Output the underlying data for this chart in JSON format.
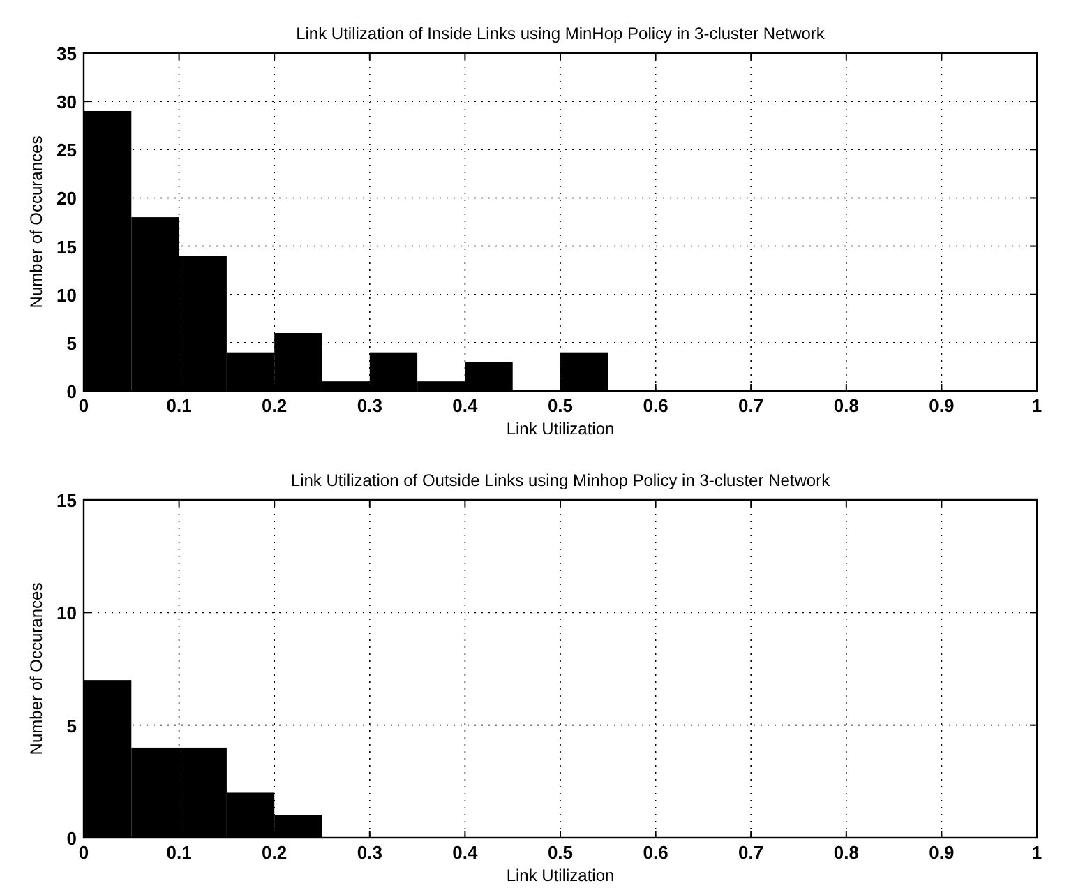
{
  "chart_data": [
    {
      "type": "histogram",
      "title": "Link Utilization of Inside Links using MinHop Policy in 3-cluster Network",
      "xlabel": "Link Utilization",
      "ylabel": "Number of Occurances",
      "color": "#000000",
      "bins": [
        0,
        0.05,
        0.1,
        0.15,
        0.2,
        0.25,
        0.3,
        0.35,
        0.4,
        0.45,
        0.5,
        0.55,
        0.6,
        0.65,
        0.7,
        0.75,
        0.8,
        0.85,
        0.9,
        0.95,
        1
      ],
      "values": [
        29,
        18,
        14,
        4,
        6,
        1,
        4,
        1,
        3,
        0,
        4,
        0,
        0,
        0,
        0,
        0,
        0,
        0,
        0,
        0
      ],
      "xlim": [
        0,
        1
      ],
      "xticks": [
        0,
        0.1,
        0.2,
        0.3,
        0.4,
        0.5,
        0.6,
        0.7,
        0.8,
        0.9,
        1
      ],
      "ylim": [
        0,
        35
      ],
      "yticks": [
        0,
        5,
        10,
        15,
        20,
        25,
        30,
        35
      ],
      "grid": true
    },
    {
      "type": "histogram",
      "title": "Link Utilization of Outside Links using Minhop Policy in 3-cluster Network",
      "xlabel": "Link Utilization",
      "ylabel": "Number of Occurances",
      "color": "#000000",
      "bins": [
        0,
        0.05,
        0.1,
        0.15,
        0.2,
        0.25,
        0.3,
        0.35,
        0.4,
        0.45,
        0.5,
        0.55,
        0.6,
        0.65,
        0.7,
        0.75,
        0.8,
        0.85,
        0.9,
        0.95,
        1
      ],
      "values": [
        7,
        4,
        4,
        2,
        1,
        0,
        0,
        0,
        0,
        0,
        0,
        0,
        0,
        0,
        0,
        0,
        0,
        0,
        0,
        0
      ],
      "xlim": [
        0,
        1
      ],
      "xticks": [
        0,
        0.1,
        0.2,
        0.3,
        0.4,
        0.5,
        0.6,
        0.7,
        0.8,
        0.9,
        1
      ],
      "ylim": [
        0,
        15
      ],
      "yticks": [
        0,
        5,
        10,
        15
      ],
      "grid": true
    }
  ]
}
